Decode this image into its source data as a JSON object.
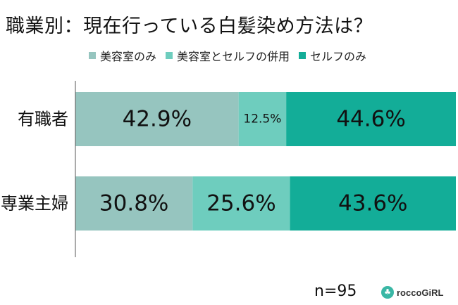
{
  "chart_data": {
    "type": "bar",
    "orientation": "horizontal",
    "stacked": "percent",
    "title": "職業別：現在行っている白髪染め方法は？",
    "categories": [
      "有職者",
      "専業主婦"
    ],
    "series": [
      {
        "name": "美容室のみ",
        "color": "#96c5bf",
        "values": [
          42.9,
          30.8
        ],
        "labels": [
          "42.9%",
          "30.8%"
        ]
      },
      {
        "name": "美容室とセルフの併用",
        "color": "#6ecdbe",
        "values": [
          12.5,
          25.6
        ],
        "labels": [
          "12.5%",
          "25.6%"
        ]
      },
      {
        "name": "セルフのみ",
        "color": "#13ad98",
        "values": [
          44.6,
          43.6
        ],
        "labels": [
          "44.6%",
          "43.6%"
        ]
      }
    ],
    "xlim": [
      0,
      100
    ],
    "legend_position": "top",
    "grid": false,
    "sample_size": "n=95"
  },
  "branding": {
    "logo_icon": "clover-icon",
    "logo_glyph": "♣",
    "name": "roccoGiRL",
    "logo_color": "#3ab7a5"
  }
}
